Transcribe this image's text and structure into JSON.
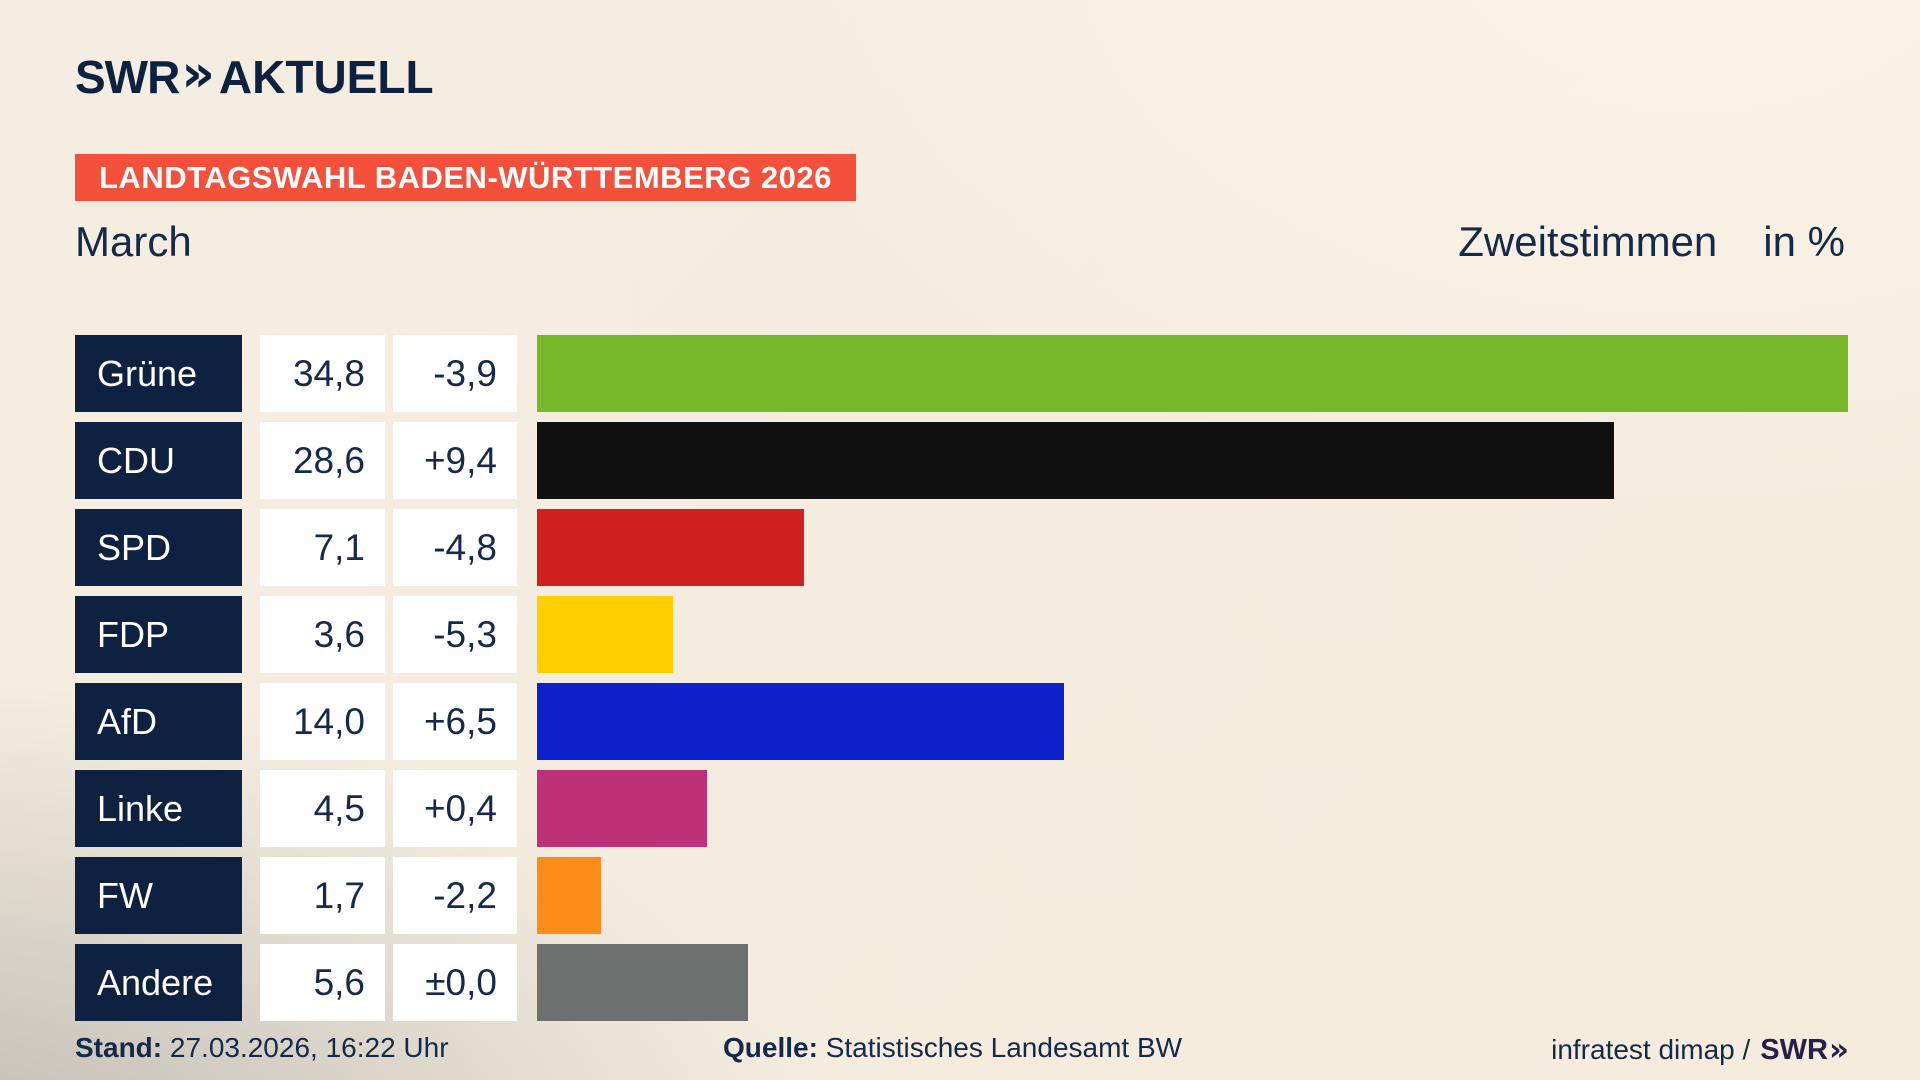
{
  "header": {
    "logo": {
      "brand": "SWR",
      "chevrons": "»",
      "product": "AKTUELL"
    },
    "badge": "LANDTAGSWAHL BADEN-WÜRTTEMBERG 2026",
    "subtitle_left": "March",
    "subtitle_right": "Zweitstimmen",
    "unit_label": "in %"
  },
  "chart_data": {
    "type": "bar",
    "orientation": "horizontal",
    "title": "Landtagswahl Baden-Württemberg 2026 — Zweitstimmen in %",
    "xlim": [
      0,
      34.8
    ],
    "categories": [
      "Grüne",
      "CDU",
      "SPD",
      "FDP",
      "AfD",
      "Linke",
      "FW",
      "Andere"
    ],
    "values": [
      34.8,
      28.6,
      7.1,
      3.6,
      14.0,
      4.5,
      1.7,
      5.6
    ],
    "changes": [
      -3.9,
      9.4,
      -4.8,
      -5.3,
      6.5,
      0.4,
      -2.2,
      0.0
    ],
    "parties": [
      {
        "name": "Grüne",
        "value": 34.8,
        "value_label": "34,8",
        "change_label": "-3,9",
        "color": "#76b82a"
      },
      {
        "name": "CDU",
        "value": 28.6,
        "value_label": "28,6",
        "change_label": "+9,4",
        "color": "#111111"
      },
      {
        "name": "SPD",
        "value": 7.1,
        "value_label": "7,1",
        "change_label": "-4,8",
        "color": "#d32121"
      },
      {
        "name": "FDP",
        "value": 3.6,
        "value_label": "3,6",
        "change_label": "-5,3",
        "color": "#ffd000"
      },
      {
        "name": "AfD",
        "value": 14.0,
        "value_label": "14,0",
        "change_label": "+6,5",
        "color": "#0c20cc"
      },
      {
        "name": "Linke",
        "value": 4.5,
        "value_label": "4,5",
        "change_label": "+0,4",
        "color": "#bd3178"
      },
      {
        "name": "FW",
        "value": 1.7,
        "value_label": "1,7",
        "change_label": "-2,2",
        "color": "#fb8d18"
      },
      {
        "name": "Andere",
        "value": 5.6,
        "value_label": "5,6",
        "change_label": "±0,0",
        "color": "#6e7070"
      }
    ]
  },
  "footer": {
    "stand_label": "Stand:",
    "stand_value": "27.03.2026, 16:22 Uhr",
    "source_label": "Quelle:",
    "source_value": "Statistisches Landesamt BW",
    "credit_text": "infratest dimap /",
    "credit_brand": "SWR",
    "credit_chevrons": "»"
  },
  "colors": {
    "background_cream": "#f5ecdd",
    "background_gray": "#c9c6c0",
    "navy_box": "#0e2140",
    "text_navy": "#15294b",
    "badge_red": "#f4503c",
    "value_box_white": "#ffffff"
  }
}
